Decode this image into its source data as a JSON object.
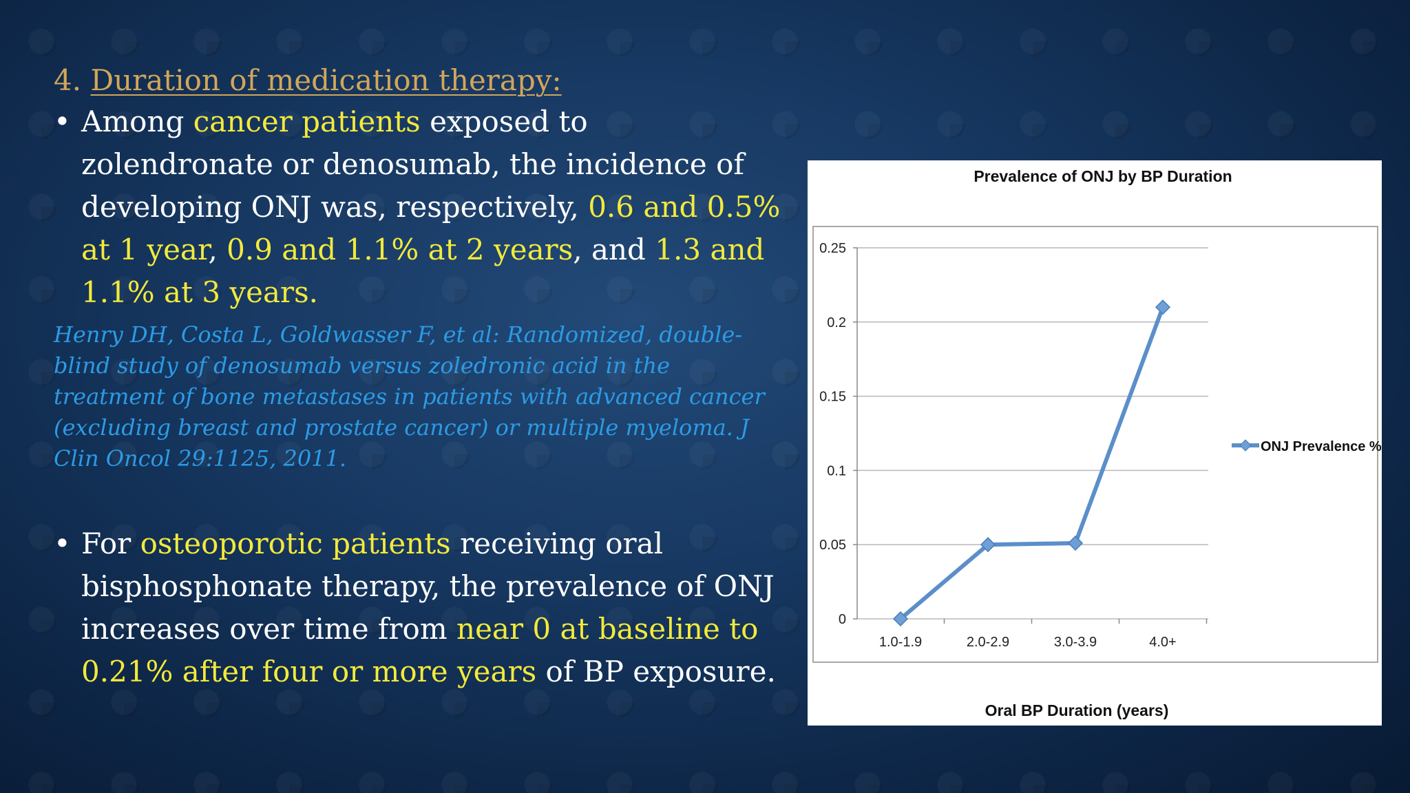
{
  "slide": {
    "heading_num": "4. ",
    "heading_text": "Duration of medication therapy:",
    "bullet1": {
      "p1": "Among ",
      "h1": "cancer patients",
      "p2": " exposed to zolendronate or denosumab, the incidence of developing ONJ was, respectively, ",
      "h2": "0.6 and 0.5% at 1 year",
      "p3": ", ",
      "h3": "0.9 and 1.1% at 2 years",
      "p4": ", and ",
      "h4": "1.3 and 1.1% at 3 years."
    },
    "reference": "Henry DH, Costa L, Goldwasser F, et al: Randomized, double-blind study of denosumab versus zoledronic acid in the treatment of bone metastases in patients with advanced cancer (excluding breast and prostate cancer) or multiple myeloma. J Clin Oncol 29:1125, 2011.",
    "bullet2": {
      "p1": "For ",
      "h1": "osteoporotic patients",
      "p2": " receiving oral bisphosphonate therapy, the prevalence of ONJ increases over time from ",
      "h2": "near 0 at baseline to 0.21% after four or more years",
      "p3": " of BP exposure."
    },
    "bullet_char": "•"
  },
  "chart_data": {
    "type": "line",
    "title": "Prevalence of ONJ by BP Duration",
    "xlabel": "Oral BP Duration (years)",
    "ylabel": "",
    "categories": [
      "1.0-1.9",
      "2.0-2.9",
      "3.0-3.9",
      "4.0+"
    ],
    "series": [
      {
        "name": "ONJ Prevalence %",
        "values": [
          0,
          0.05,
          0.051,
          0.21
        ]
      }
    ],
    "ylim": [
      0,
      0.25
    ],
    "yticks": [
      "0",
      "0.05",
      "0.1",
      "0.15",
      "0.2",
      "0.25"
    ],
    "grid": true,
    "legend": "right",
    "colors": {
      "line": "#5b8fc9",
      "marker": "#6e9fd6",
      "grid": "#b8b8b8"
    }
  }
}
